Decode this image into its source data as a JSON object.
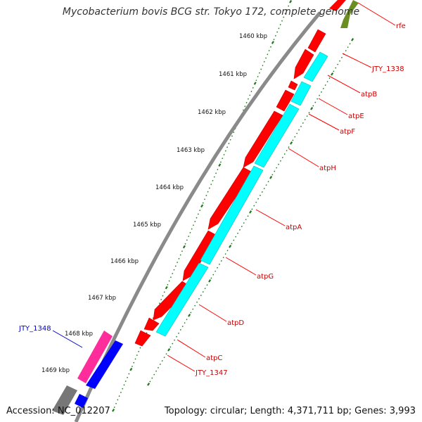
{
  "title": "Mycobacterium bovis BCG str. Tokyo 172, complete genome",
  "footer": {
    "accession": "Accession: NC_012207",
    "summary": "Topology: circular; Length: 4,371,711 bp; Genes: 3,993"
  },
  "colors": {
    "background": "#ffffff",
    "backbone": "#8a8a8a",
    "gene_forward": "#ff0000",
    "gene_reverse": "#00ffff",
    "gene_pink": "#ff2d9b",
    "gene_blue": "#0000ff",
    "gene_olive": "#6b8e23",
    "ticks": "#1a7a1a",
    "label_red": "#cc0000",
    "label_blue": "#0000cc"
  },
  "scale_labels": [
    "1460 kbp",
    "1461 kbp",
    "1462 kbp",
    "1463 kbp",
    "1464 kbp",
    "1465 kbp",
    "1466 kbp",
    "1467 kbp",
    "1468 kbp",
    "1469 kbp"
  ],
  "gene_labels": [
    {
      "text": "rfe",
      "color": "red"
    },
    {
      "text": "JTY_1338",
      "color": "red"
    },
    {
      "text": "atpB",
      "color": "red"
    },
    {
      "text": "atpE",
      "color": "red"
    },
    {
      "text": "atpF",
      "color": "red"
    },
    {
      "text": "atpH",
      "color": "red"
    },
    {
      "text": "atpA",
      "color": "red"
    },
    {
      "text": "atpG",
      "color": "red"
    },
    {
      "text": "atpD",
      "color": "red"
    },
    {
      "text": "atpC",
      "color": "red"
    },
    {
      "text": "JTY_1347",
      "color": "red"
    },
    {
      "text": "JTY_1348",
      "color": "blue"
    }
  ]
}
